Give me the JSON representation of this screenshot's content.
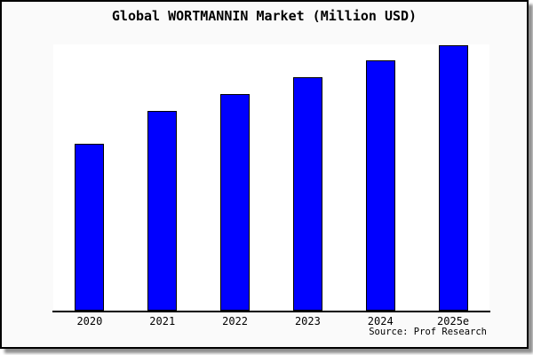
{
  "window": {
    "title": "Global WORTMANNIN Market (Million USD)",
    "source": "Source: Prof Research"
  },
  "colors": {
    "bar_fill": "#0000ff",
    "bar_border": "#000000",
    "plot_background": "#ffffff",
    "page_background": "#fafafa",
    "axis_line": "#000000",
    "text": "#000000"
  },
  "chart_data": {
    "type": "bar",
    "title": "Global WORTMANNIN Market (Million USD)",
    "categories": [
      "2020",
      "2021",
      "2022",
      "2023",
      "2024",
      "2025e"
    ],
    "values": [
      62.7,
      75.0,
      81.3,
      87.7,
      94.0,
      99.7
    ],
    "xlabel": "",
    "ylabel": "",
    "ylim": [
      0,
      100
    ],
    "grid": false,
    "legend": false,
    "y_axis_shown": false,
    "note": "No y-axis scale is rendered; values are relative bar heights as percent of the tallest possible plot height",
    "source": "Source: Prof Research"
  }
}
